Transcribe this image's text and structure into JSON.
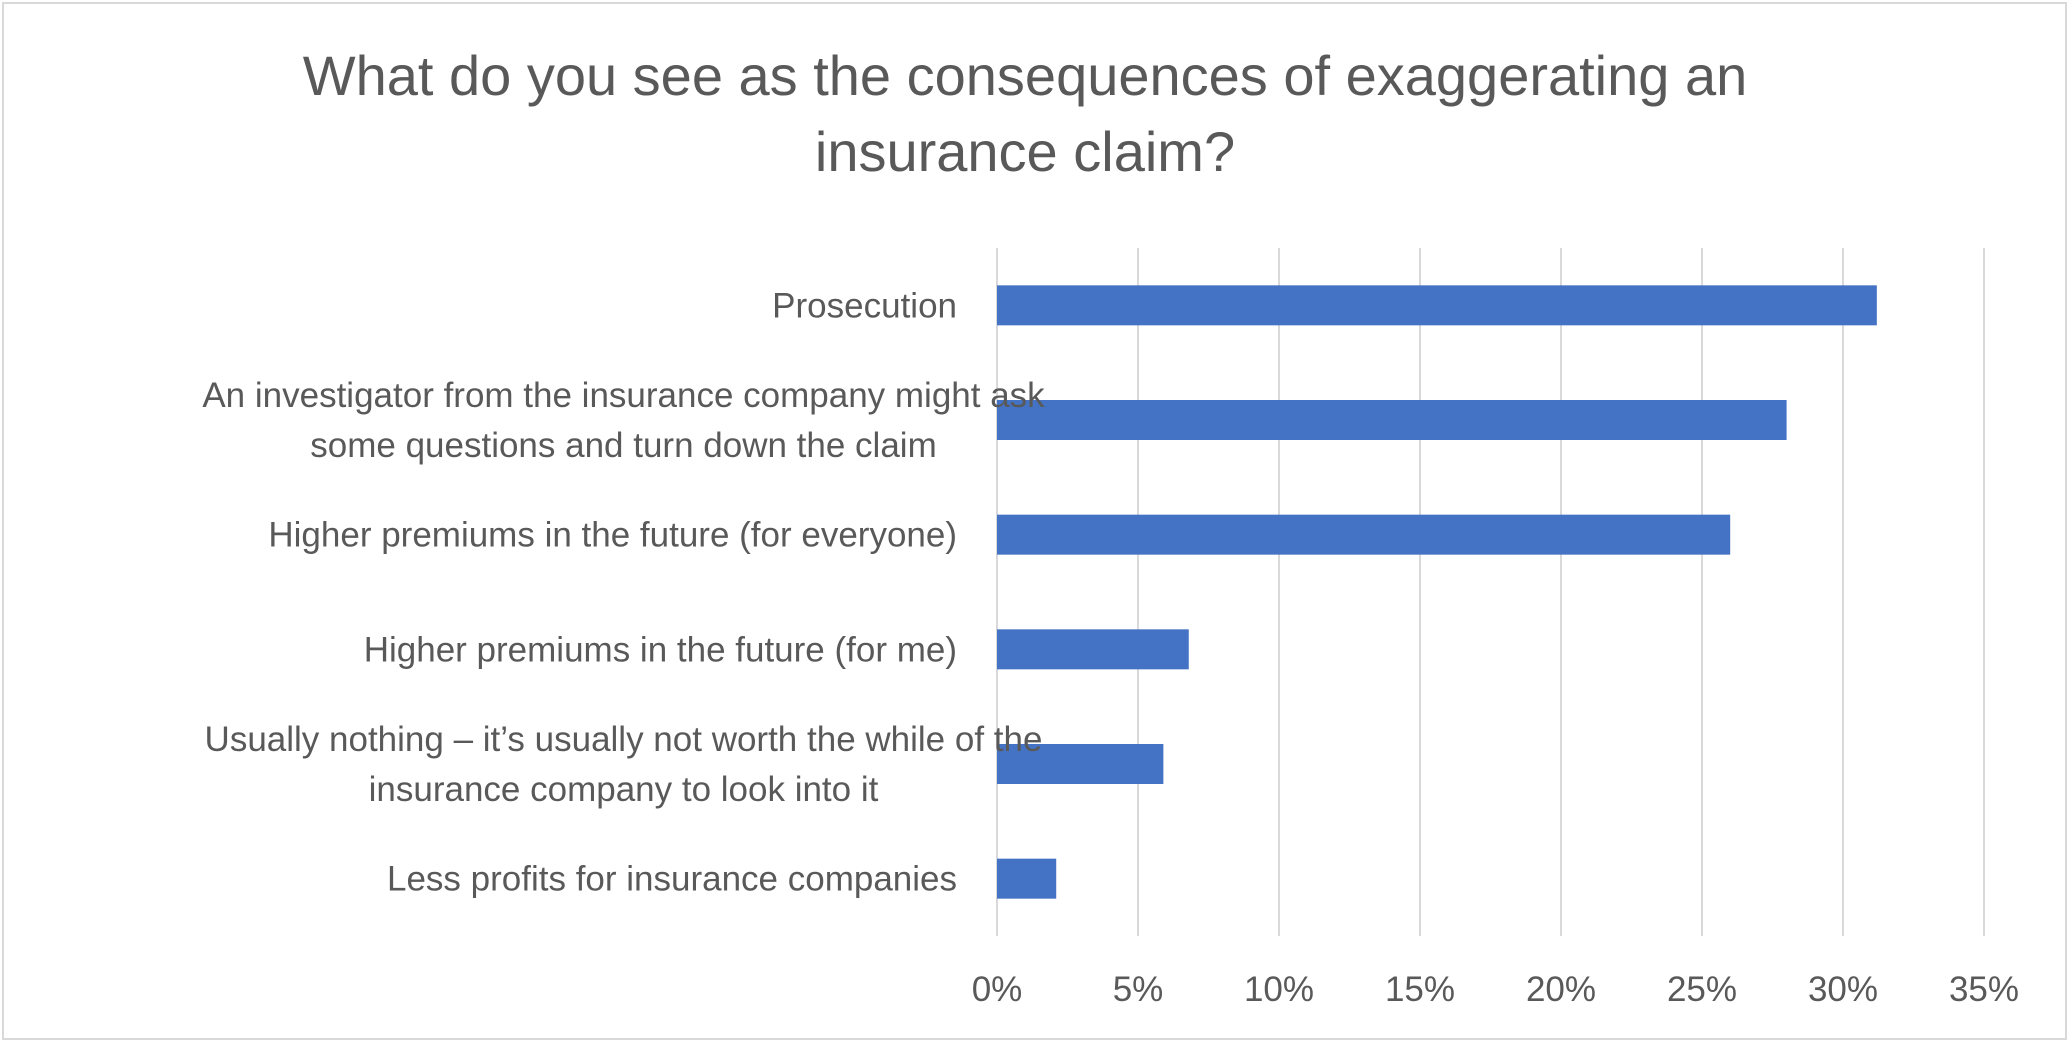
{
  "chart_data": {
    "type": "bar",
    "orientation": "horizontal",
    "title": "What do you see as the consequences of exaggerating an insurance claim?",
    "categories": [
      [
        "Prosecution"
      ],
      [
        "An investigator from the insurance company might ask",
        "some questions and turn down the claim"
      ],
      [
        "Higher premiums in the future (for everyone)"
      ],
      [
        "Higher premiums in the future (for me)"
      ],
      [
        "Usually nothing – it’s usually not worth the while of the",
        "insurance company to look into it"
      ],
      [
        "Less profits for insurance companies"
      ]
    ],
    "values": [
      0.312,
      0.28,
      0.26,
      0.068,
      0.059,
      0.021
    ],
    "xlim": [
      0,
      0.35
    ],
    "ticks": [
      0,
      0.05,
      0.1,
      0.15,
      0.2,
      0.25,
      0.3,
      0.35
    ],
    "tick_labels": [
      "0%",
      "5%",
      "10%",
      "15%",
      "20%",
      "25%",
      "30%",
      "35%"
    ],
    "grid": true,
    "bar_color": "#4472c4",
    "grid_color": "#d9d9d9",
    "text_color": "#595959"
  }
}
